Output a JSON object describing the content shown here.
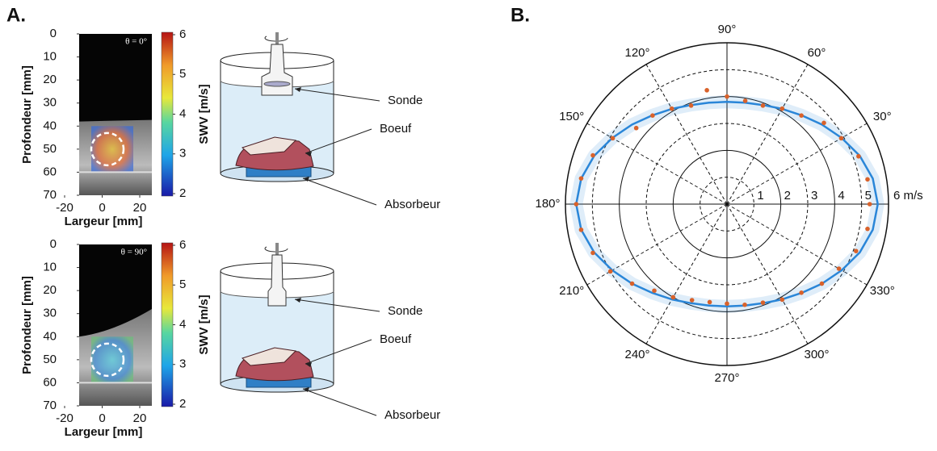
{
  "panel_a": {
    "letter": "A.",
    "images": [
      {
        "theta_label": "θ = 0°"
      },
      {
        "theta_label": "θ = 90°"
      }
    ],
    "ylabel": "Profondeur [mm]",
    "xlabel": "Largeur [mm]",
    "ylim": [
      0,
      70
    ],
    "yticks": [
      0,
      10,
      20,
      30,
      40,
      50,
      60,
      70
    ],
    "xlim": [
      -20,
      20
    ],
    "xticks": [
      -20,
      0,
      20
    ],
    "colorbar": {
      "label": "SWV [m/s]",
      "lim": [
        2,
        6
      ],
      "ticks": [
        2,
        3,
        4,
        5,
        6
      ]
    },
    "diagram_labels": [
      "Sonde",
      "Boeuf",
      "Absorbeur"
    ]
  },
  "chart_data": {
    "type": "polar",
    "letter": "B.",
    "rlim": [
      0,
      6
    ],
    "rticks": [
      1,
      2,
      3,
      4,
      5,
      {
        "value": 6,
        "label": "6 m/s"
      }
    ],
    "angle_ticks": [
      {
        "value": 30,
        "label": "30°"
      },
      {
        "value": 60,
        "label": "60°"
      },
      {
        "value": 90,
        "label": "90°"
      },
      {
        "value": 120,
        "label": "120°"
      },
      {
        "value": 150,
        "label": "150°"
      },
      {
        "value": 180,
        "label": "180°"
      },
      {
        "value": 210,
        "label": "210°"
      },
      {
        "value": 240,
        "label": "240°"
      },
      {
        "value": 270,
        "label": "270°"
      },
      {
        "value": 300,
        "label": "300°"
      },
      {
        "value": 330,
        "label": "330°"
      }
    ],
    "series": [
      {
        "color": "#2a86d8",
        "kind": "line",
        "theta": [
          0,
          10,
          20,
          30,
          40,
          50,
          60,
          70,
          80,
          90,
          100,
          110,
          120,
          130,
          140,
          150,
          160,
          170,
          180,
          190,
          200,
          210,
          220,
          230,
          240,
          250,
          260,
          270,
          280,
          290,
          300,
          310,
          320,
          330,
          340,
          350
        ],
        "values": [
          5.6,
          5.5,
          5.25,
          4.92,
          4.6,
          4.31,
          4.09,
          3.92,
          3.83,
          3.8,
          3.83,
          3.92,
          4.09,
          4.31,
          4.6,
          4.92,
          5.25,
          5.5,
          5.6,
          5.5,
          5.25,
          4.92,
          4.6,
          4.31,
          4.09,
          3.92,
          3.83,
          3.8,
          3.83,
          3.92,
          4.09,
          4.31,
          4.6,
          4.92,
          5.25,
          5.5
        ]
      },
      {
        "color": "#d9622b",
        "kind": "points",
        "theta": [
          0,
          10,
          20,
          30,
          40,
          50,
          60,
          70,
          80,
          90,
          100,
          110,
          120,
          130,
          140,
          150,
          160,
          170,
          180,
          190,
          200,
          210,
          220,
          230,
          240,
          250,
          260,
          270,
          280,
          290,
          300,
          310,
          320,
          330,
          340,
          350
        ],
        "values": [
          5.3,
          5.3,
          5.2,
          4.9,
          4.7,
          4.3,
          4.1,
          3.9,
          3.9,
          4.0,
          4.3,
          3.9,
          4.1,
          4.3,
          4.4,
          4.9,
          5.3,
          5.5,
          5.6,
          5.5,
          5.3,
          5.0,
          4.6,
          4.2,
          4.0,
          3.8,
          3.7,
          3.7,
          3.8,
          3.9,
          4.1,
          4.3,
          4.6,
          4.8,
          5.1,
          5.3
        ]
      }
    ]
  }
}
